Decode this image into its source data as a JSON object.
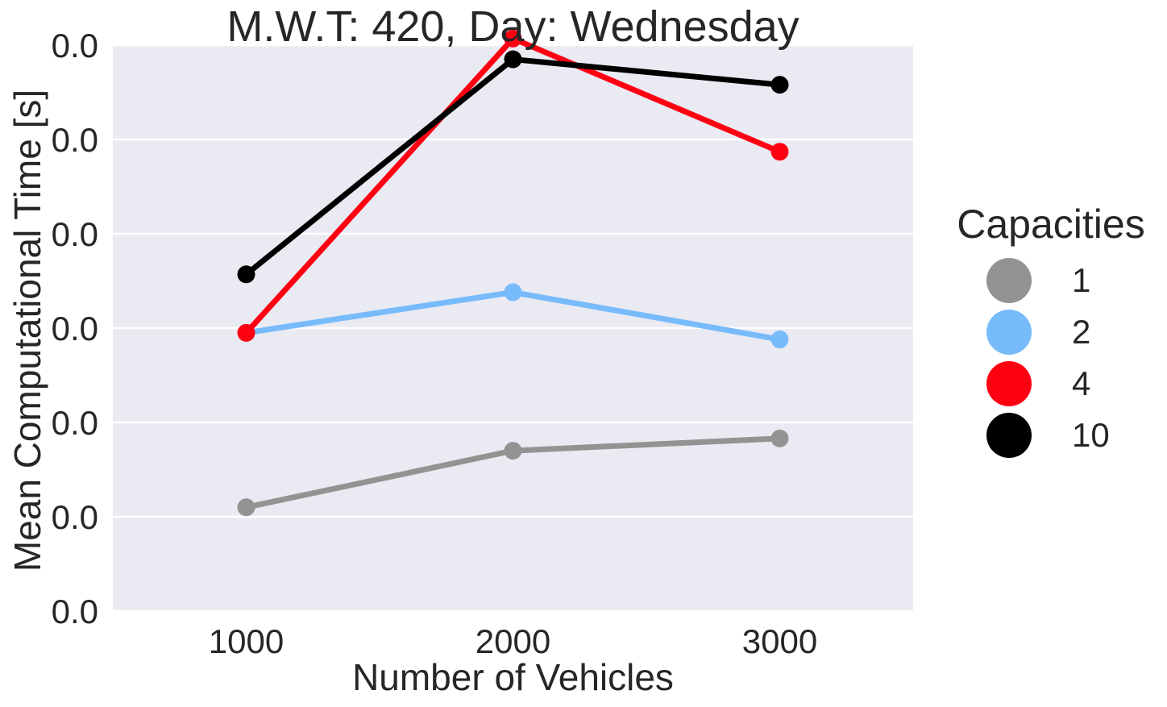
{
  "chart_data": {
    "type": "line",
    "title": "M.W.T: 420, Day: Wednesday",
    "xlabel": "Number of Vehicles",
    "ylabel": "Mean Computational Time [s]",
    "categories": [
      "1000",
      "2000",
      "3000"
    ],
    "y_tick_labels": [
      "0.0",
      "0.0",
      "0.0",
      "0.0",
      "0.0",
      "0.0",
      "0.0"
    ],
    "ylim": [
      0,
      6
    ],
    "grid": true,
    "legend": {
      "title": "Capacities",
      "placement": "right"
    },
    "series": [
      {
        "name": "1",
        "color": "#939393",
        "values": [
          1.1,
          1.7,
          1.83
        ]
      },
      {
        "name": "2",
        "color": "#77bbfb",
        "values": [
          2.95,
          3.38,
          2.88
        ]
      },
      {
        "name": "4",
        "color": "#ff0013",
        "values": [
          2.95,
          6.07,
          4.87
        ]
      },
      {
        "name": "10",
        "color": "#000000",
        "values": [
          3.57,
          5.85,
          5.58
        ]
      }
    ]
  }
}
